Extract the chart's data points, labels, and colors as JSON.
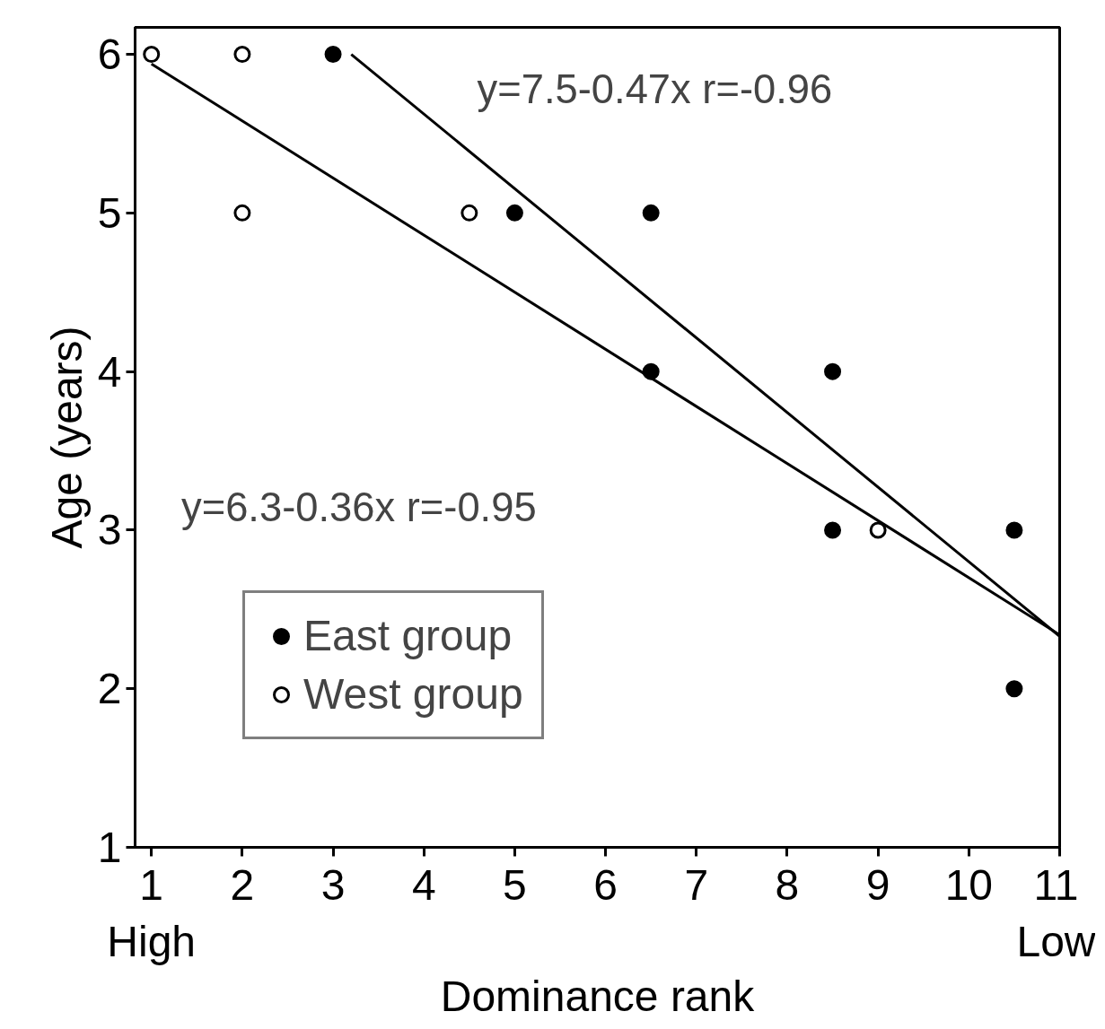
{
  "chart_data": {
    "type": "scatter",
    "xlabel": "Dominance rank",
    "ylabel": "Age (years)",
    "xlim": [
      0.82,
      11
    ],
    "ylim": [
      1,
      6.17
    ],
    "xticks": [
      {
        "value": 1,
        "label": "1\nHigh"
      },
      2,
      3,
      4,
      5,
      6,
      7,
      8,
      9,
      10,
      {
        "value": 11,
        "label": "11\nLow"
      }
    ],
    "yticks": [
      1,
      2,
      3,
      4,
      5,
      6
    ],
    "grid": false,
    "legend": "bottom left",
    "series": [
      {
        "name": "East group",
        "marker": "circle",
        "color": "#000000",
        "x": [
          3,
          5,
          6.5,
          6.5,
          8.5,
          8.5,
          10.5,
          10.5
        ],
        "values": [
          6,
          5,
          5,
          4,
          4,
          3,
          3,
          2
        ]
      },
      {
        "name": "West group",
        "marker": "circle",
        "color": "#ffffff",
        "x": [
          1,
          2,
          2,
          4.5,
          9
        ],
        "values": [
          6,
          6,
          5,
          5,
          3
        ]
      },
      {
        "type": "line",
        "color": "#000000",
        "x": [
          3.2,
          11
        ],
        "values": [
          6.0,
          2.33
        ]
      },
      {
        "type": "line",
        "color": "#000000",
        "x": [
          1,
          11
        ],
        "values": [
          5.94,
          2.34
        ]
      }
    ],
    "annotations": [
      "y=7.5-0.47x   r=-0.96",
      "y=6.3-0.36x  r=-0.95"
    ]
  }
}
